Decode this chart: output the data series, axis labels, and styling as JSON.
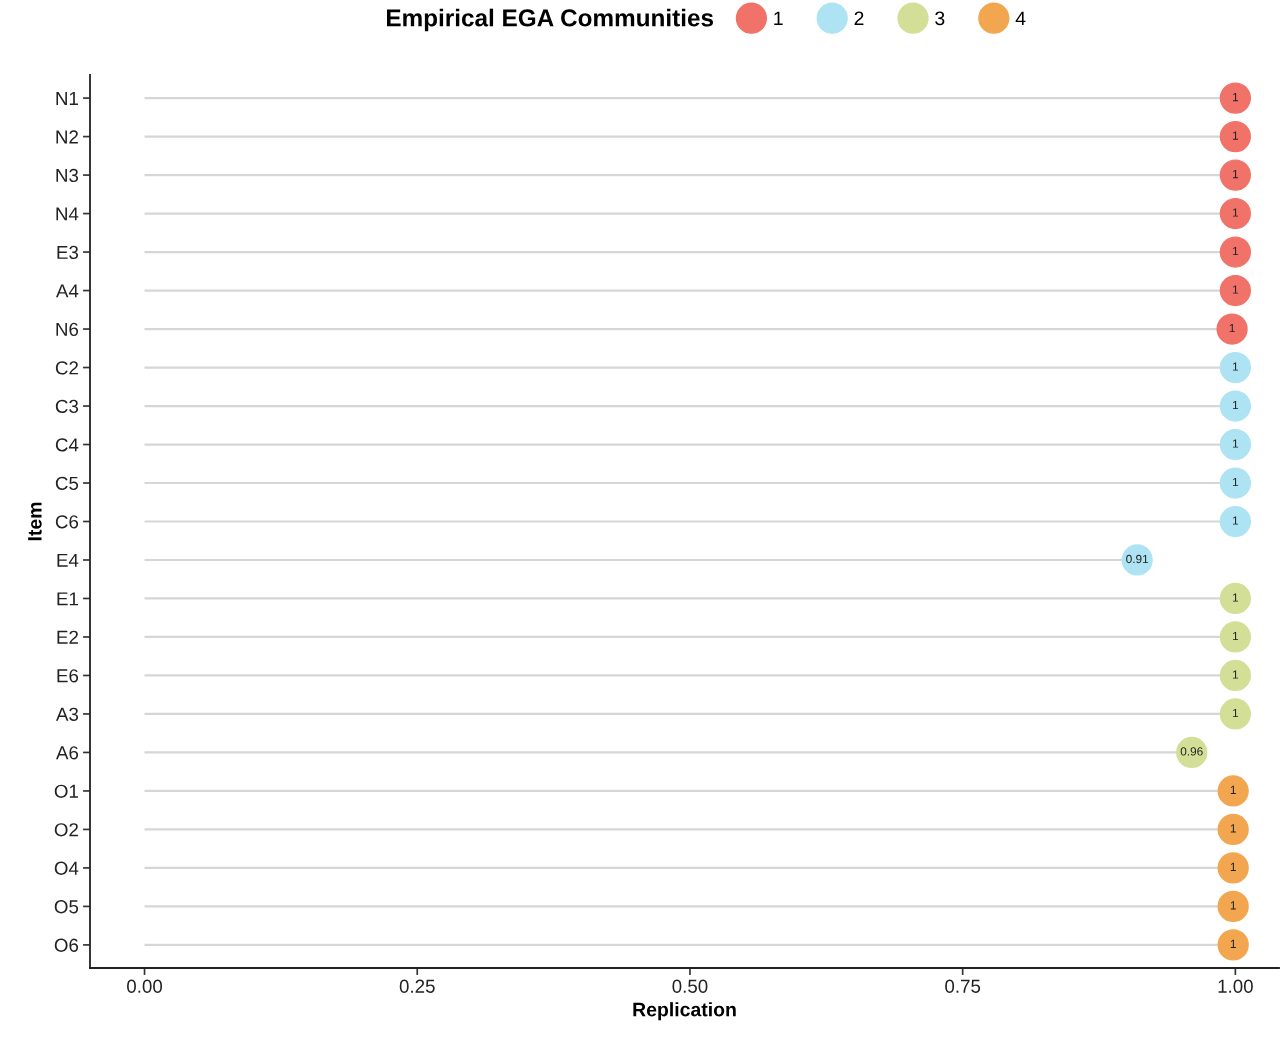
{
  "chart_data": {
    "type": "lollipop",
    "orientation": "horizontal",
    "xlabel": "Replication",
    "ylabel": "Item",
    "legend_title": "Empirical EGA Communities",
    "legend": "top",
    "categories": [
      "N1",
      "N2",
      "N3",
      "N4",
      "E3",
      "A4",
      "N6",
      "C2",
      "C3",
      "C4",
      "C5",
      "C6",
      "E4",
      "E1",
      "E2",
      "E6",
      "A3",
      "A6",
      "O1",
      "O2",
      "O4",
      "O5",
      "O6"
    ],
    "series": [
      {
        "name": "1",
        "color": "#f07268",
        "values": [
          1,
          1,
          1,
          1,
          1,
          1,
          0.997,
          null,
          null,
          null,
          null,
          null,
          null,
          null,
          null,
          null,
          null,
          null,
          null,
          null,
          null,
          null,
          null
        ],
        "value_labels": [
          "1",
          "1",
          "1",
          "1",
          "1",
          "1",
          "1",
          null,
          null,
          null,
          null,
          null,
          null,
          null,
          null,
          null,
          null,
          null,
          null,
          null,
          null,
          null,
          null
        ]
      },
      {
        "name": "2",
        "color": "#ade3f3",
        "values": [
          null,
          null,
          null,
          null,
          null,
          null,
          null,
          1,
          1,
          1,
          1,
          1,
          0.91,
          null,
          null,
          null,
          null,
          null,
          null,
          null,
          null,
          null,
          null
        ],
        "value_labels": [
          null,
          null,
          null,
          null,
          null,
          null,
          null,
          "1",
          "1",
          "1",
          "1",
          "1",
          "0.91",
          null,
          null,
          null,
          null,
          null,
          null,
          null,
          null,
          null,
          null
        ]
      },
      {
        "name": "3",
        "color": "#d3df97",
        "values": [
          null,
          null,
          null,
          null,
          null,
          null,
          null,
          null,
          null,
          null,
          null,
          null,
          null,
          1,
          1,
          1,
          1,
          0.96,
          null,
          null,
          null,
          null,
          null
        ],
        "value_labels": [
          null,
          null,
          null,
          null,
          null,
          null,
          null,
          null,
          null,
          null,
          null,
          null,
          null,
          "1",
          "1",
          "1",
          "1",
          "0.96",
          null,
          null,
          null,
          null,
          null
        ]
      },
      {
        "name": "4",
        "color": "#f3a650",
        "values": [
          null,
          null,
          null,
          null,
          null,
          null,
          null,
          null,
          null,
          null,
          null,
          null,
          null,
          null,
          null,
          null,
          null,
          null,
          0.998,
          0.998,
          0.998,
          0.998,
          0.998
        ],
        "value_labels": [
          null,
          null,
          null,
          null,
          null,
          null,
          null,
          null,
          null,
          null,
          null,
          null,
          null,
          null,
          null,
          null,
          null,
          null,
          "1",
          "1",
          "1",
          "1",
          "1"
        ]
      }
    ],
    "xlim": [
      -0.05,
      1.04
    ],
    "xticks": [
      {
        "value": 0,
        "label": "0.00"
      },
      {
        "value": 0.25,
        "label": "0.25"
      },
      {
        "value": 0.5,
        "label": "0.50"
      },
      {
        "value": 0.75,
        "label": "0.75"
      },
      {
        "value": 1,
        "label": "1.00"
      }
    ],
    "grid": false,
    "marker": "circle"
  }
}
